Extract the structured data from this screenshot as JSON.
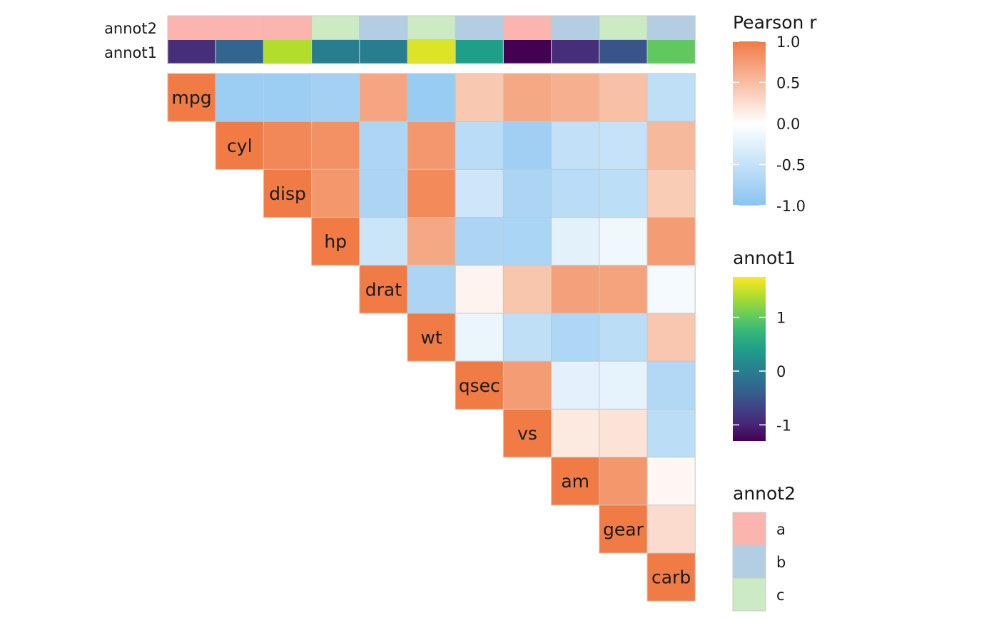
{
  "chart_data": {
    "type": "heatmap",
    "variables": [
      "mpg",
      "cyl",
      "disp",
      "hp",
      "drat",
      "wt",
      "qsec",
      "vs",
      "am",
      "gear",
      "carb"
    ],
    "matrix": [
      [
        1.0,
        -0.85,
        -0.85,
        -0.78,
        0.68,
        -0.87,
        0.42,
        0.66,
        0.6,
        0.48,
        -0.55
      ],
      [
        -0.85,
        1.0,
        0.9,
        0.83,
        -0.7,
        0.78,
        -0.59,
        -0.81,
        -0.52,
        -0.49,
        0.53
      ],
      [
        -0.85,
        0.9,
        1.0,
        0.79,
        -0.71,
        0.89,
        -0.43,
        -0.71,
        -0.59,
        -0.56,
        0.39
      ],
      [
        -0.78,
        0.83,
        0.79,
        1.0,
        -0.45,
        0.66,
        -0.71,
        -0.72,
        -0.24,
        -0.13,
        0.75
      ],
      [
        0.68,
        -0.7,
        -0.71,
        -0.45,
        1.0,
        -0.71,
        0.09,
        0.44,
        0.71,
        0.7,
        -0.09
      ],
      [
        -0.87,
        0.78,
        0.89,
        0.66,
        -0.71,
        1.0,
        -0.17,
        -0.55,
        -0.69,
        -0.58,
        0.43
      ],
      [
        0.42,
        -0.59,
        -0.43,
        -0.71,
        0.09,
        -0.17,
        1.0,
        0.74,
        -0.23,
        -0.21,
        -0.66
      ],
      [
        0.66,
        -0.81,
        -0.71,
        -0.72,
        0.44,
        -0.55,
        0.74,
        1.0,
        0.17,
        0.21,
        -0.57
      ],
      [
        0.6,
        -0.52,
        -0.59,
        -0.24,
        0.71,
        -0.69,
        -0.23,
        0.17,
        1.0,
        0.79,
        0.06
      ],
      [
        0.48,
        -0.49,
        -0.56,
        -0.13,
        0.7,
        -0.58,
        -0.21,
        0.21,
        0.79,
        1.0,
        0.27
      ],
      [
        -0.55,
        0.53,
        0.39,
        0.75,
        -0.09,
        0.43,
        -0.66,
        -0.57,
        0.06,
        0.27,
        1.0
      ]
    ],
    "annotation_rows": [
      "annot2",
      "annot1"
    ],
    "annot1": [
      -0.9,
      -0.3,
      1.4,
      0.0,
      0.0,
      1.6,
      0.4,
      -1.3,
      -0.9,
      -0.5,
      1.0
    ],
    "annot2": [
      "a",
      "a",
      "a",
      "c",
      "b",
      "c",
      "b",
      "a",
      "b",
      "c",
      "b"
    ],
    "legends": {
      "pearson": {
        "title": "Pearson r",
        "ticks": [
          1.0,
          0.5,
          0.0,
          -0.5,
          -1.0
        ],
        "tick_labels": [
          "1.0",
          "0.5",
          "0.0",
          "-0.5",
          "-1.0"
        ],
        "range": [
          -1,
          1
        ],
        "colors": {
          "high": "#F07B45",
          "mid": "#FFFFFF",
          "low": "#8AC4F0"
        }
      },
      "annot1": {
        "title": "annot1",
        "ticks": [
          1,
          0,
          -1
        ],
        "tick_labels": [
          "1",
          "0",
          "-1"
        ],
        "range": [
          -1.3,
          1.75
        ],
        "palette": "viridis"
      },
      "annot2": {
        "title": "annot2",
        "levels": [
          "a",
          "b",
          "c"
        ],
        "colors": [
          "#FBB4AE",
          "#B3CDE3",
          "#CCEBC5"
        ]
      }
    },
    "grid_color": "#c8c8c8"
  }
}
